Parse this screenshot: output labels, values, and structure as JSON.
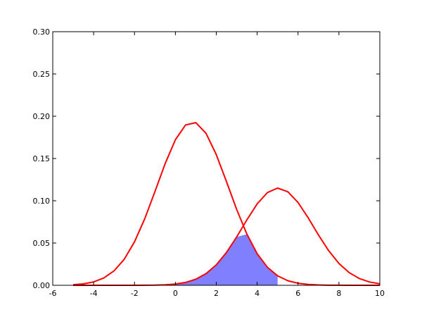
{
  "chart_data": {
    "type": "area",
    "title": "",
    "xlabel": "",
    "ylabel": "",
    "xlim": [
      -6,
      10
    ],
    "ylim": [
      0,
      0.3
    ],
    "grid": false,
    "x_ticks": [
      -6,
      -4,
      -2,
      0,
      2,
      4,
      6,
      8,
      10
    ],
    "y_ticks": [
      0.0,
      0.05,
      0.1,
      0.15,
      0.2,
      0.25,
      0.3
    ],
    "x_tick_labels": [
      "-6",
      "-4",
      "-2",
      "0",
      "2",
      "4",
      "6",
      "8",
      "10"
    ],
    "y_tick_labels": [
      "0.00",
      "0.05",
      "0.10",
      "0.15",
      "0.20",
      "0.25",
      "0.30"
    ],
    "series": [
      {
        "type": "line",
        "color": "#ff0000",
        "points": [
          [
            -5,
            0.0007
          ],
          [
            -4.5,
            0.0017
          ],
          [
            -4,
            0.004
          ],
          [
            -3.5,
            0.0087
          ],
          [
            -3,
            0.0171
          ],
          [
            -2.5,
            0.0309
          ],
          [
            -2,
            0.0514
          ],
          [
            -1.5,
            0.0787
          ],
          [
            -1,
            0.1109
          ],
          [
            -0.5,
            0.144
          ],
          [
            0,
            0.1722
          ],
          [
            0.5,
            0.1897
          ],
          [
            1,
            0.1924
          ],
          [
            1.5,
            0.1797
          ],
          [
            2,
            0.1546
          ],
          [
            2.5,
            0.1226
          ],
          [
            3,
            0.0896
          ],
          [
            3.5,
            0.0604
          ],
          [
            4,
            0.0374
          ],
          [
            4.5,
            0.0214
          ],
          [
            5,
            0.0112
          ],
          [
            5.5,
            0.0054
          ],
          [
            6,
            0.0024
          ],
          [
            6.5,
            0.001
          ],
          [
            7,
            0.0004
          ],
          [
            7.5,
            0.0001
          ],
          [
            8,
            0.0001
          ],
          [
            8.5,
            0.0
          ],
          [
            9,
            0.0
          ],
          [
            9.5,
            0.0
          ],
          [
            10,
            0.0
          ]
        ]
      },
      {
        "type": "line",
        "color": "#ff0000",
        "points": [
          [
            -5,
            0.0
          ],
          [
            -4.5,
            0.0
          ],
          [
            -4,
            0.0
          ],
          [
            -3.5,
            0.0
          ],
          [
            -3,
            0.0
          ],
          [
            -2.5,
            0.0
          ],
          [
            -2,
            0.0
          ],
          [
            -1.5,
            0.0001
          ],
          [
            -1,
            0.0002
          ],
          [
            -0.5,
            0.0006
          ],
          [
            0,
            0.0015
          ],
          [
            0.5,
            0.0034
          ],
          [
            1,
            0.0072
          ],
          [
            1.5,
            0.0138
          ],
          [
            2,
            0.0242
          ],
          [
            2.5,
            0.0389
          ],
          [
            3,
            0.0573
          ],
          [
            3.5,
            0.0775
          ],
          [
            4,
            0.0963
          ],
          [
            4.5,
            0.1097
          ],
          [
            5,
            0.115
          ],
          [
            5.5,
            0.1107
          ],
          [
            6,
            0.098
          ],
          [
            6.5,
            0.0797
          ],
          [
            7,
            0.0595
          ],
          [
            7.5,
            0.0409
          ],
          [
            8,
            0.0258
          ],
          [
            8.5,
            0.015
          ],
          [
            9,
            0.008
          ],
          [
            9.5,
            0.0039
          ],
          [
            10,
            0.0018
          ]
        ]
      },
      {
        "type": "fill",
        "color": "#8080ff",
        "points": [
          [
            0,
            0.0015
          ],
          [
            0.5,
            0.0034
          ],
          [
            1,
            0.0072
          ],
          [
            1.5,
            0.0138
          ],
          [
            2,
            0.0242
          ],
          [
            2.5,
            0.0389
          ],
          [
            3,
            0.0573
          ],
          [
            3.5,
            0.0604
          ],
          [
            4,
            0.0374
          ],
          [
            4.5,
            0.0214
          ],
          [
            5,
            0.0112
          ]
        ]
      }
    ]
  }
}
